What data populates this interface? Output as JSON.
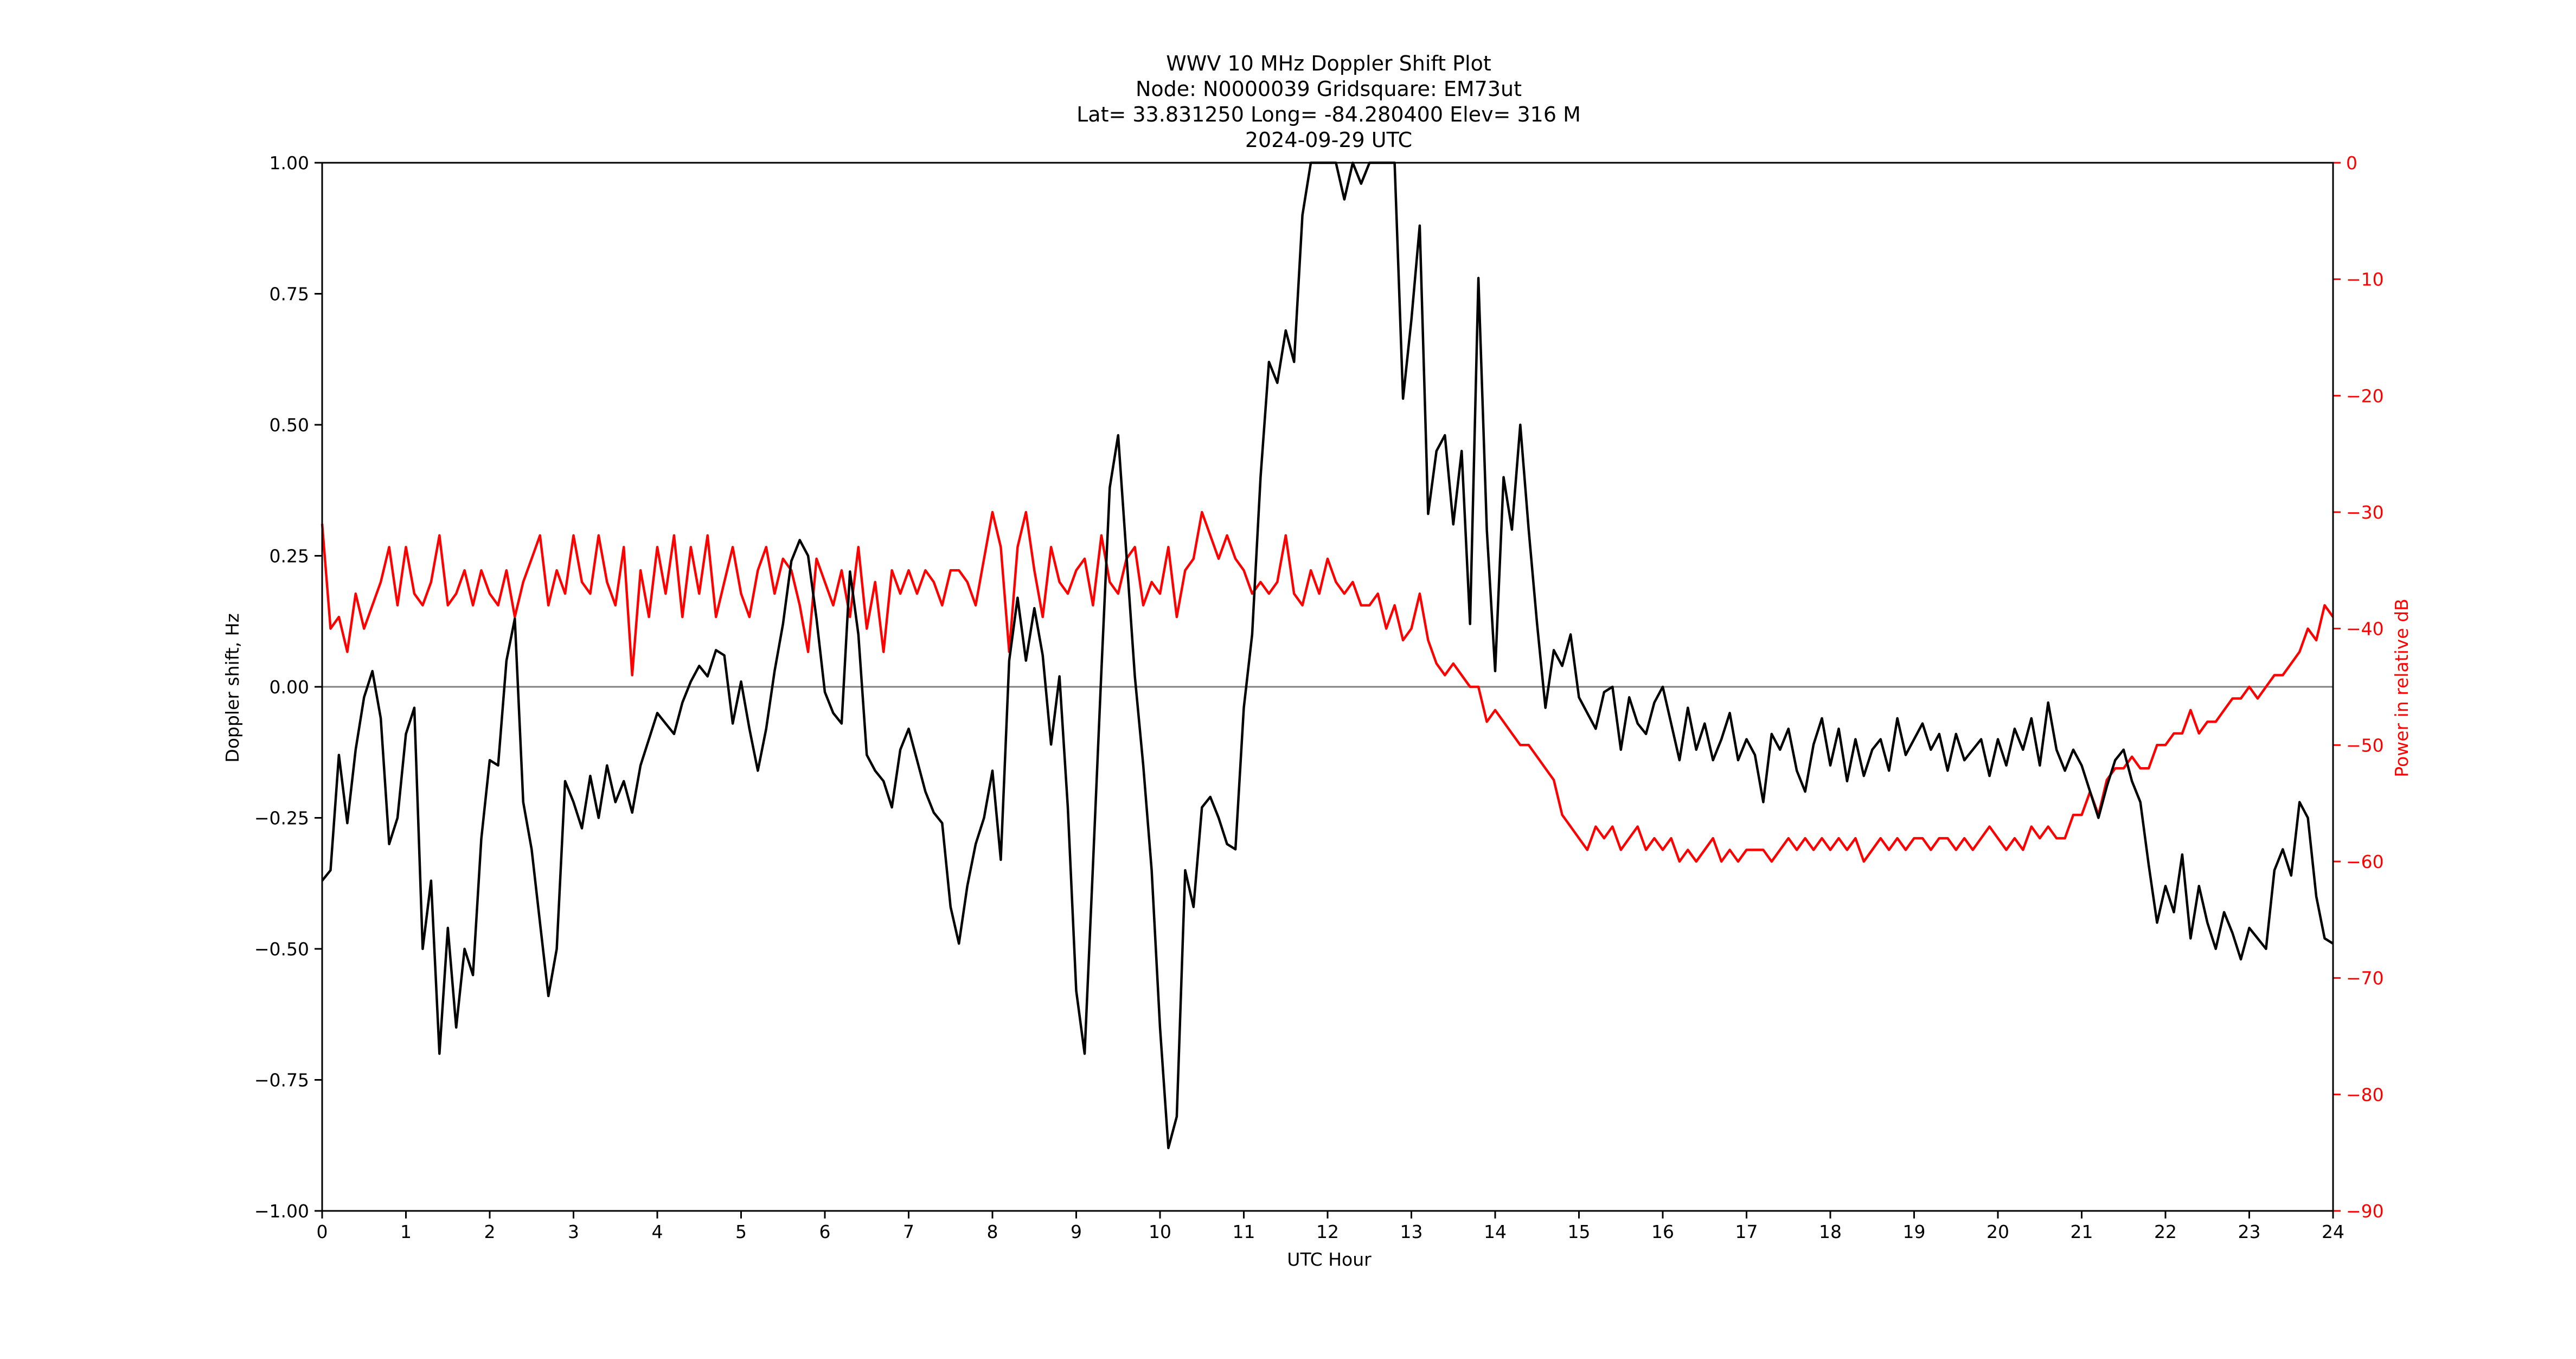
{
  "chart_data": {
    "type": "line",
    "title_lines": [
      "WWV 10 MHz Doppler Shift Plot",
      "Node:  N0000039     Gridsquare:  EM73ut",
      "Lat= 33.831250    Long= -84.280400    Elev= 316 M",
      "2024-09-29  UTC"
    ],
    "xlabel": "UTC Hour",
    "ylabel": "Doppler shift, Hz",
    "y2label": "Power in relative dB",
    "xlim": [
      0,
      24
    ],
    "ylim": [
      -1.0,
      1.0
    ],
    "y2lim": [
      -90,
      0
    ],
    "x_ticks": [
      0,
      1,
      2,
      3,
      4,
      5,
      6,
      7,
      8,
      9,
      10,
      11,
      12,
      13,
      14,
      15,
      16,
      17,
      18,
      19,
      20,
      21,
      22,
      23,
      24
    ],
    "x_tick_labels": [
      "0",
      "1",
      "2",
      "3",
      "4",
      "5",
      "6",
      "7",
      "8",
      "9",
      "10",
      "11",
      "12",
      "13",
      "14",
      "15",
      "16",
      "17",
      "18",
      "19",
      "20",
      "21",
      "22",
      "23",
      "24"
    ],
    "y_ticks": [
      -1.0,
      -0.75,
      -0.5,
      -0.25,
      0.0,
      0.25,
      0.5,
      0.75,
      1.0
    ],
    "y_tick_labels": [
      "−1.00",
      "−0.75",
      "−0.50",
      "−0.25",
      "0.00",
      "0.25",
      "0.50",
      "0.75",
      "1.00"
    ],
    "y2_ticks": [
      -90,
      -80,
      -70,
      -60,
      -50,
      -40,
      -30,
      -20,
      -10,
      0
    ],
    "y2_tick_labels": [
      "−90",
      "−80",
      "−70",
      "−60",
      "−50",
      "−40",
      "−30",
      "−20",
      "−10",
      "0"
    ],
    "zero_line": 0,
    "grid": false,
    "colors": {
      "doppler": "#000000",
      "power": "#ff0000",
      "zero_line": "#808080",
      "axes": "#000000"
    },
    "series": [
      {
        "axis": "left",
        "x": [
          0,
          0.1,
          0.2,
          0.3,
          0.4,
          0.5,
          0.6,
          0.7,
          0.8,
          0.9,
          1.0,
          1.1,
          1.2,
          1.3,
          1.4,
          1.5,
          1.6,
          1.7,
          1.8,
          1.9,
          2.0,
          2.1,
          2.2,
          2.3,
          2.4,
          2.5,
          2.6,
          2.7,
          2.8,
          2.9,
          3.0,
          3.1,
          3.2,
          3.3,
          3.4,
          3.5,
          3.6,
          3.7,
          3.8,
          3.9,
          4.0,
          4.1,
          4.2,
          4.3,
          4.4,
          4.5,
          4.6,
          4.7,
          4.8,
          4.9,
          5.0,
          5.1,
          5.2,
          5.3,
          5.4,
          5.5,
          5.6,
          5.7,
          5.8,
          5.9,
          6.0,
          6.1,
          6.2,
          6.3,
          6.4,
          6.5,
          6.6,
          6.7,
          6.8,
          6.9,
          7.0,
          7.1,
          7.2,
          7.3,
          7.4,
          7.5,
          7.6,
          7.7,
          7.8,
          7.9,
          8.0,
          8.1,
          8.2,
          8.3,
          8.4,
          8.5,
          8.6,
          8.7,
          8.8,
          8.9,
          9.0,
          9.1,
          9.2,
          9.3,
          9.4,
          9.5,
          9.6,
          9.7,
          9.8,
          9.9,
          10.0,
          10.1,
          10.2,
          10.3,
          10.4,
          10.5,
          10.6,
          10.7,
          10.8,
          10.9,
          11.0,
          11.1,
          11.2,
          11.3,
          11.4,
          11.5,
          11.6,
          11.7,
          11.8,
          11.9,
          12.0,
          12.1,
          12.2,
          12.3,
          12.4,
          12.5,
          12.6,
          12.7,
          12.8,
          12.9,
          13.0,
          13.1,
          13.2,
          13.3,
          13.4,
          13.5,
          13.6,
          13.7,
          13.8,
          13.9,
          14.0,
          14.1,
          14.2,
          14.3,
          14.4,
          14.5,
          14.6,
          14.7,
          14.8,
          14.9,
          15.0,
          15.1,
          15.2,
          15.3,
          15.4,
          15.5,
          15.6,
          15.7,
          15.8,
          15.9,
          16.0,
          16.1,
          16.2,
          16.3,
          16.4,
          16.5,
          16.6,
          16.7,
          16.8,
          16.9,
          17.0,
          17.1,
          17.2,
          17.3,
          17.4,
          17.5,
          17.6,
          17.7,
          17.8,
          17.9,
          18.0,
          18.1,
          18.2,
          18.3,
          18.4,
          18.5,
          18.6,
          18.7,
          18.8,
          18.9,
          19.0,
          19.1,
          19.2,
          19.3,
          19.4,
          19.5,
          19.6,
          19.7,
          19.8,
          19.9,
          20.0,
          20.1,
          20.2,
          20.3,
          20.4,
          20.5,
          20.6,
          20.7,
          20.8,
          20.9,
          21.0,
          21.1,
          21.2,
          21.3,
          21.4,
          21.5,
          21.6,
          21.7,
          21.8,
          21.9,
          22.0,
          22.1,
          22.2,
          22.3,
          22.4,
          22.5,
          22.6,
          22.7,
          22.8,
          22.9,
          23.0,
          23.1,
          23.2,
          23.3,
          23.4,
          23.5,
          23.6,
          23.7,
          23.8,
          23.9,
          24.0
        ],
        "values": [
          -0.37,
          -0.35,
          -0.13,
          -0.26,
          -0.12,
          -0.02,
          0.03,
          -0.06,
          -0.3,
          -0.25,
          -0.09,
          -0.04,
          -0.5,
          -0.37,
          -0.7,
          -0.46,
          -0.65,
          -0.5,
          -0.55,
          -0.29,
          -0.14,
          -0.15,
          0.05,
          0.13,
          -0.22,
          -0.31,
          -0.45,
          -0.59,
          -0.5,
          -0.18,
          -0.22,
          -0.27,
          -0.17,
          -0.25,
          -0.15,
          -0.22,
          -0.18,
          -0.24,
          -0.15,
          -0.1,
          -0.05,
          -0.07,
          -0.09,
          -0.03,
          0.01,
          0.04,
          0.02,
          0.07,
          0.06,
          -0.07,
          0.01,
          -0.08,
          -0.16,
          -0.08,
          0.03,
          0.12,
          0.24,
          0.28,
          0.25,
          0.13,
          -0.01,
          -0.05,
          -0.07,
          0.22,
          0.1,
          -0.13,
          -0.16,
          -0.18,
          -0.23,
          -0.12,
          -0.08,
          -0.14,
          -0.2,
          -0.24,
          -0.26,
          -0.42,
          -0.49,
          -0.38,
          -0.3,
          -0.25,
          -0.16,
          -0.33,
          0.05,
          0.17,
          0.05,
          0.15,
          0.06,
          -0.11,
          0.02,
          -0.23,
          -0.58,
          -0.7,
          -0.34,
          0.03,
          0.38,
          0.48,
          0.25,
          0.02,
          -0.15,
          -0.35,
          -0.65,
          -0.88,
          -0.82,
          -0.35,
          -0.42,
          -0.23,
          -0.21,
          -0.25,
          -0.3,
          -0.31,
          -0.04,
          0.1,
          0.4,
          0.62,
          0.58,
          0.68,
          0.62,
          0.9,
          1.05,
          1.05,
          1.05,
          1.04,
          0.93,
          1.02,
          0.96,
          1.05,
          1.05,
          1.05,
          1.03,
          0.55,
          0.7,
          0.88,
          0.33,
          0.45,
          0.48,
          0.31,
          0.45,
          0.12,
          0.78,
          0.3,
          0.03,
          0.4,
          0.3,
          0.5,
          0.3,
          0.12,
          -0.04,
          0.07,
          0.04,
          0.1,
          -0.02,
          -0.05,
          -0.08,
          -0.01,
          0.0,
          -0.12,
          -0.02,
          -0.07,
          -0.09,
          -0.03,
          0.0,
          -0.07,
          -0.14,
          -0.04,
          -0.12,
          -0.07,
          -0.14,
          -0.1,
          -0.05,
          -0.14,
          -0.1,
          -0.13,
          -0.22,
          -0.09,
          -0.12,
          -0.08,
          -0.16,
          -0.2,
          -0.11,
          -0.06,
          -0.15,
          -0.08,
          -0.18,
          -0.1,
          -0.17,
          -0.12,
          -0.1,
          -0.16,
          -0.06,
          -0.13,
          -0.1,
          -0.07,
          -0.12,
          -0.09,
          -0.16,
          -0.09,
          -0.14,
          -0.12,
          -0.1,
          -0.17,
          -0.1,
          -0.15,
          -0.08,
          -0.12,
          -0.06,
          -0.15,
          -0.03,
          -0.12,
          -0.16,
          -0.12,
          -0.15,
          -0.2,
          -0.25,
          -0.19,
          -0.14,
          -0.12,
          -0.18,
          -0.22,
          -0.34,
          -0.45,
          -0.38,
          -0.43,
          -0.32,
          -0.48,
          -0.38,
          -0.45,
          -0.5,
          -0.43,
          -0.47,
          -0.52,
          -0.46,
          -0.48,
          -0.5,
          -0.35,
          -0.31,
          -0.36,
          -0.22,
          -0.25,
          -0.4,
          -0.48,
          -0.49
        ],
        "color": "#000000"
      },
      {
        "axis": "right",
        "x": [
          0,
          0.1,
          0.2,
          0.3,
          0.4,
          0.5,
          0.6,
          0.7,
          0.8,
          0.9,
          1.0,
          1.1,
          1.2,
          1.3,
          1.4,
          1.5,
          1.6,
          1.7,
          1.8,
          1.9,
          2.0,
          2.1,
          2.2,
          2.3,
          2.4,
          2.5,
          2.6,
          2.7,
          2.8,
          2.9,
          3.0,
          3.1,
          3.2,
          3.3,
          3.4,
          3.5,
          3.6,
          3.7,
          3.8,
          3.9,
          4.0,
          4.1,
          4.2,
          4.3,
          4.4,
          4.5,
          4.6,
          4.7,
          4.8,
          4.9,
          5.0,
          5.1,
          5.2,
          5.3,
          5.4,
          5.5,
          5.6,
          5.7,
          5.8,
          5.9,
          6.0,
          6.1,
          6.2,
          6.3,
          6.4,
          6.5,
          6.6,
          6.7,
          6.8,
          6.9,
          7.0,
          7.1,
          7.2,
          7.3,
          7.4,
          7.5,
          7.6,
          7.7,
          7.8,
          7.9,
          8.0,
          8.1,
          8.2,
          8.3,
          8.4,
          8.5,
          8.6,
          8.7,
          8.8,
          8.9,
          9.0,
          9.1,
          9.2,
          9.3,
          9.4,
          9.5,
          9.6,
          9.7,
          9.8,
          9.9,
          10.0,
          10.1,
          10.2,
          10.3,
          10.4,
          10.5,
          10.6,
          10.7,
          10.8,
          10.9,
          11.0,
          11.1,
          11.2,
          11.3,
          11.4,
          11.5,
          11.6,
          11.7,
          11.8,
          11.9,
          12.0,
          12.1,
          12.2,
          12.3,
          12.4,
          12.5,
          12.6,
          12.7,
          12.8,
          12.9,
          13.0,
          13.1,
          13.2,
          13.3,
          13.4,
          13.5,
          13.6,
          13.7,
          13.8,
          13.9,
          14.0,
          14.1,
          14.2,
          14.3,
          14.4,
          14.5,
          14.6,
          14.7,
          14.8,
          14.9,
          15.0,
          15.1,
          15.2,
          15.3,
          15.4,
          15.5,
          15.6,
          15.7,
          15.8,
          15.9,
          16.0,
          16.1,
          16.2,
          16.3,
          16.4,
          16.5,
          16.6,
          16.7,
          16.8,
          16.9,
          17.0,
          17.1,
          17.2,
          17.3,
          17.4,
          17.5,
          17.6,
          17.7,
          17.8,
          17.9,
          18.0,
          18.1,
          18.2,
          18.3,
          18.4,
          18.5,
          18.6,
          18.7,
          18.8,
          18.9,
          19.0,
          19.1,
          19.2,
          19.3,
          19.4,
          19.5,
          19.6,
          19.7,
          19.8,
          19.9,
          20.0,
          20.1,
          20.2,
          20.3,
          20.4,
          20.5,
          20.6,
          20.7,
          20.8,
          20.9,
          21.0,
          21.1,
          21.2,
          21.3,
          21.4,
          21.5,
          21.6,
          21.7,
          21.8,
          21.9,
          22.0,
          22.1,
          22.2,
          22.3,
          22.4,
          22.5,
          22.6,
          22.7,
          22.8,
          22.9,
          23.0,
          23.1,
          23.2,
          23.3,
          23.4,
          23.5,
          23.6,
          23.7,
          23.8,
          23.9,
          24.0
        ],
        "values": [
          -31,
          -40,
          -39,
          -42,
          -37,
          -40,
          -38,
          -36,
          -33,
          -38,
          -33,
          -37,
          -38,
          -36,
          -32,
          -38,
          -37,
          -35,
          -38,
          -35,
          -37,
          -38,
          -35,
          -39,
          -36,
          -34,
          -32,
          -38,
          -35,
          -37,
          -32,
          -36,
          -37,
          -32,
          -36,
          -38,
          -33,
          -44,
          -35,
          -39,
          -33,
          -37,
          -32,
          -39,
          -33,
          -37,
          -32,
          -39,
          -36,
          -33,
          -37,
          -39,
          -35,
          -33,
          -37,
          -34,
          -35,
          -38,
          -42,
          -34,
          -36,
          -38,
          -35,
          -39,
          -33,
          -40,
          -36,
          -42,
          -35,
          -37,
          -35,
          -37,
          -35,
          -36,
          -38,
          -35,
          -35,
          -36,
          -38,
          -34,
          -30,
          -33,
          -42,
          -33,
          -30,
          -35,
          -39,
          -33,
          -36,
          -37,
          -35,
          -34,
          -38,
          -32,
          -36,
          -37,
          -34,
          -33,
          -38,
          -36,
          -37,
          -33,
          -39,
          -35,
          -34,
          -30,
          -32,
          -34,
          -32,
          -34,
          -35,
          -37,
          -36,
          -37,
          -36,
          -32,
          -37,
          -38,
          -35,
          -37,
          -34,
          -36,
          -37,
          -36,
          -38,
          -38,
          -37,
          -40,
          -38,
          -41,
          -40,
          -37,
          -41,
          -43,
          -44,
          -43,
          -44,
          -45,
          -45,
          -48,
          -47,
          -48,
          -49,
          -50,
          -50,
          -51,
          -52,
          -53,
          -56,
          -57,
          -58,
          -59,
          -57,
          -58,
          -57,
          -59,
          -58,
          -57,
          -59,
          -58,
          -59,
          -58,
          -60,
          -59,
          -60,
          -59,
          -58,
          -60,
          -59,
          -60,
          -59,
          -59,
          -59,
          -60,
          -59,
          -58,
          -59,
          -58,
          -59,
          -58,
          -59,
          -58,
          -59,
          -58,
          -60,
          -59,
          -58,
          -59,
          -58,
          -59,
          -58,
          -58,
          -59,
          -58,
          -58,
          -59,
          -58,
          -59,
          -58,
          -57,
          -58,
          -59,
          -58,
          -59,
          -57,
          -58,
          -57,
          -58,
          -58,
          -56,
          -56,
          -54,
          -56,
          -53,
          -52,
          -52,
          -51,
          -52,
          -52,
          -50,
          -50,
          -49,
          -49,
          -47,
          -49,
          -48,
          -48,
          -47,
          -46,
          -46,
          -45,
          -46,
          -45,
          -44,
          -44,
          -43,
          -42,
          -40,
          -41,
          -38,
          -39
        ],
        "color": "#ff0000"
      }
    ]
  }
}
